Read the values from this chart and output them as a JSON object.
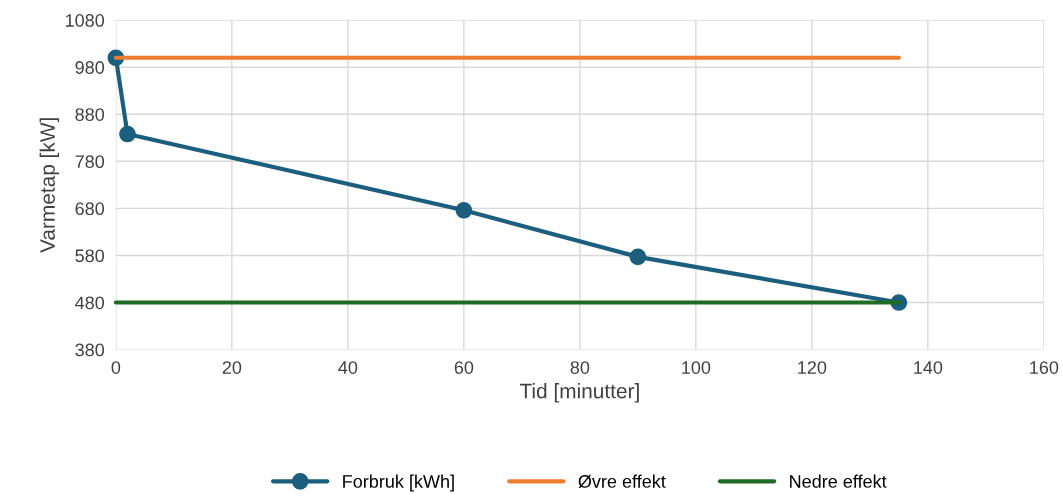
{
  "chart_data": {
    "type": "line",
    "xlabel": "Tid [minutter]",
    "ylabel": "Varmetap [kW]",
    "series": [
      {
        "name": "Forbruk [kWh]",
        "color": "#1b5e7e",
        "x": [
          0,
          2,
          60,
          90,
          135
        ],
        "values": [
          1000,
          838,
          676,
          577,
          480
        ],
        "marker": "circle"
      },
      {
        "name": "Øvre effekt",
        "color": "#ed7d31",
        "x": [
          0,
          135
        ],
        "values": [
          1000,
          1000
        ],
        "marker": "none"
      },
      {
        "name": "Nedre effekt",
        "color": "#1e6b24",
        "x": [
          0,
          135
        ],
        "values": [
          480,
          480
        ],
        "marker": "none"
      }
    ],
    "xlim": [
      0,
      160
    ],
    "xticks": [
      0,
      20,
      40,
      60,
      80,
      100,
      120,
      140,
      160
    ],
    "ylim": [
      380,
      1080
    ],
    "yticks": [
      380,
      480,
      580,
      680,
      780,
      880,
      980,
      1080
    ],
    "grid": true,
    "legend": "bottom",
    "line_style": "solid"
  }
}
